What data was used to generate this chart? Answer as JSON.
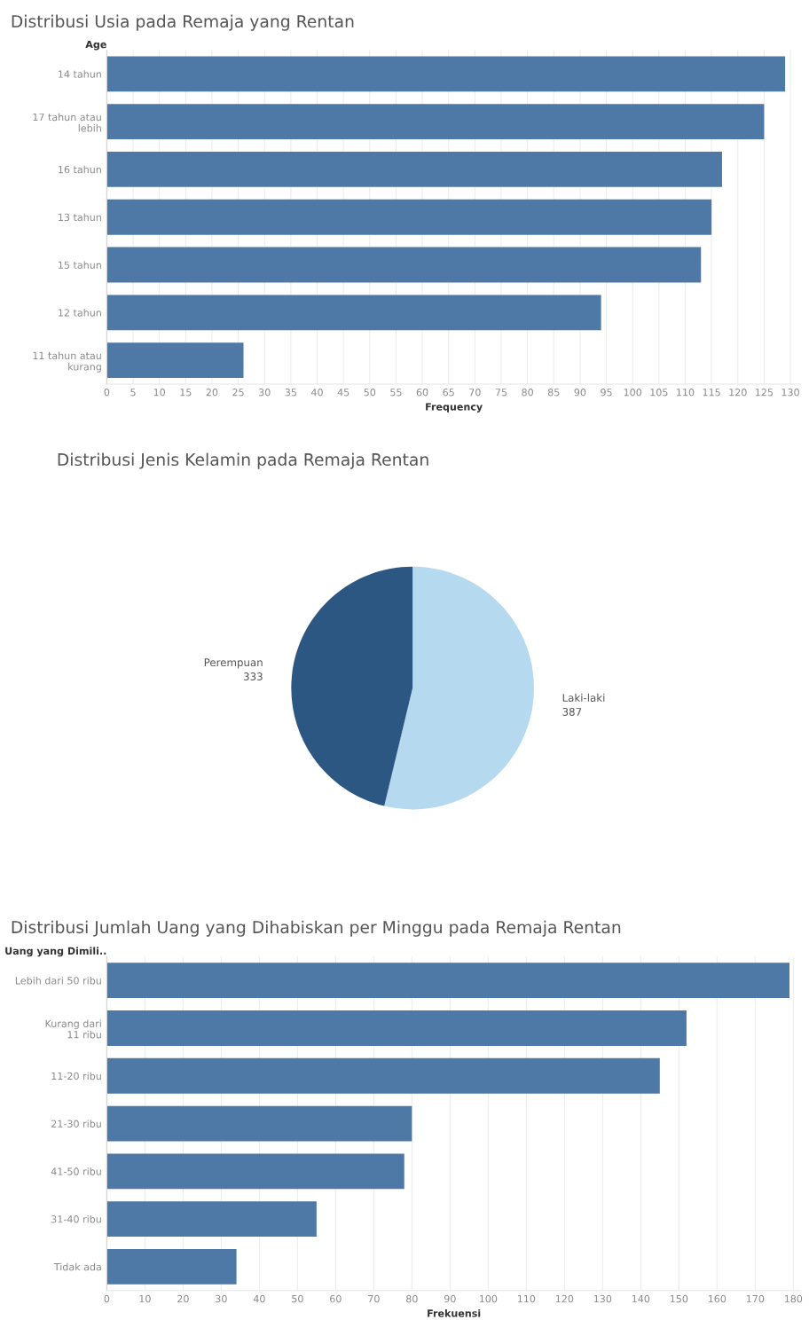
{
  "chart_data": [
    {
      "type": "bar",
      "orientation": "horizontal",
      "title": "Distribusi Usia pada Remaja yang Rentan",
      "ylabel": "Age",
      "xlabel": "Frequency",
      "categories": [
        "14 tahun",
        "17 tahun atau lebih",
        "16 tahun",
        "13 tahun",
        "15 tahun",
        "12 tahun",
        "11 tahun atau kurang"
      ],
      "values": [
        129,
        125,
        117,
        115,
        113,
        94,
        26
      ],
      "color": "#4e79a7",
      "xlim": [
        0,
        132
      ],
      "xticks": [
        0,
        5,
        10,
        15,
        20,
        25,
        30,
        35,
        40,
        45,
        50,
        55,
        60,
        65,
        70,
        75,
        80,
        85,
        90,
        95,
        100,
        105,
        110,
        115,
        120,
        125,
        130
      ],
      "grid": "x"
    },
    {
      "type": "pie",
      "title": "Distribusi Jenis Kelamin pada Remaja Rentan",
      "categories": [
        "Laki-laki",
        "Perempuan"
      ],
      "values": [
        387,
        333
      ],
      "colors": [
        "#b5d9ee",
        "#2c5783"
      ],
      "data_labels": true
    },
    {
      "type": "bar",
      "orientation": "horizontal",
      "title": "Distribusi Jumlah Uang yang Dihabiskan per Minggu pada Remaja Rentan",
      "ylabel": "Uang yang Dimili..",
      "xlabel": "Frekuensi",
      "categories": [
        "Lebih dari 50 ribu",
        "Kurang dari 11 ribu",
        "11-20 ribu",
        "21-30 ribu",
        "41-50 ribu",
        "31-40 ribu",
        "Tidak ada"
      ],
      "values": [
        179,
        152,
        145,
        80,
        78,
        55,
        34
      ],
      "color": "#4e79a7",
      "xlim": [
        0,
        182
      ],
      "xticks": [
        0,
        10,
        20,
        30,
        40,
        50,
        60,
        70,
        80,
        90,
        100,
        110,
        120,
        130,
        140,
        150,
        160,
        170,
        180
      ],
      "grid": "x"
    }
  ]
}
